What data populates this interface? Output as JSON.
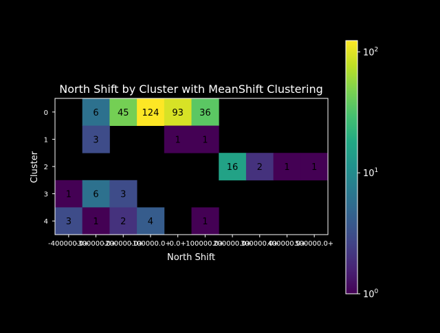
{
  "chart_data": {
    "type": "heatmap",
    "title": "North Shift by Cluster with MeanShift Clustering",
    "xlabel": "North Shift",
    "ylabel": "Cluster",
    "x_categories": [
      "-400000.0+",
      "-300000.0+",
      "-200000.0+",
      "-100000.0+",
      "0.0+",
      "100000.0+",
      "200000.0+",
      "300000.0+",
      "400000.0+",
      "500000.0+"
    ],
    "y_categories": [
      "0",
      "1",
      "2",
      "3",
      "4"
    ],
    "values": [
      [
        null,
        6,
        45,
        124,
        93,
        36,
        null,
        null,
        null,
        null
      ],
      [
        null,
        3,
        null,
        null,
        1,
        1,
        null,
        null,
        null,
        null
      ],
      [
        null,
        null,
        null,
        null,
        null,
        null,
        16,
        2,
        1,
        1
      ],
      [
        1,
        6,
        3,
        null,
        null,
        null,
        null,
        null,
        null,
        null
      ],
      [
        3,
        1,
        2,
        4,
        null,
        1,
        null,
        null,
        null,
        null
      ]
    ],
    "colorscale": "viridis",
    "color_scale_type": "log",
    "color_range": [
      1,
      124
    ],
    "colorbar_ticks": [
      {
        "value": 1,
        "base": "10",
        "exp": "0"
      },
      {
        "value": 10,
        "base": "10",
        "exp": "1"
      },
      {
        "value": 100,
        "base": "10",
        "exp": "2"
      }
    ],
    "colors": {
      "background": "#000000",
      "text": "#ffffff",
      "cell_text": "#000000"
    }
  }
}
